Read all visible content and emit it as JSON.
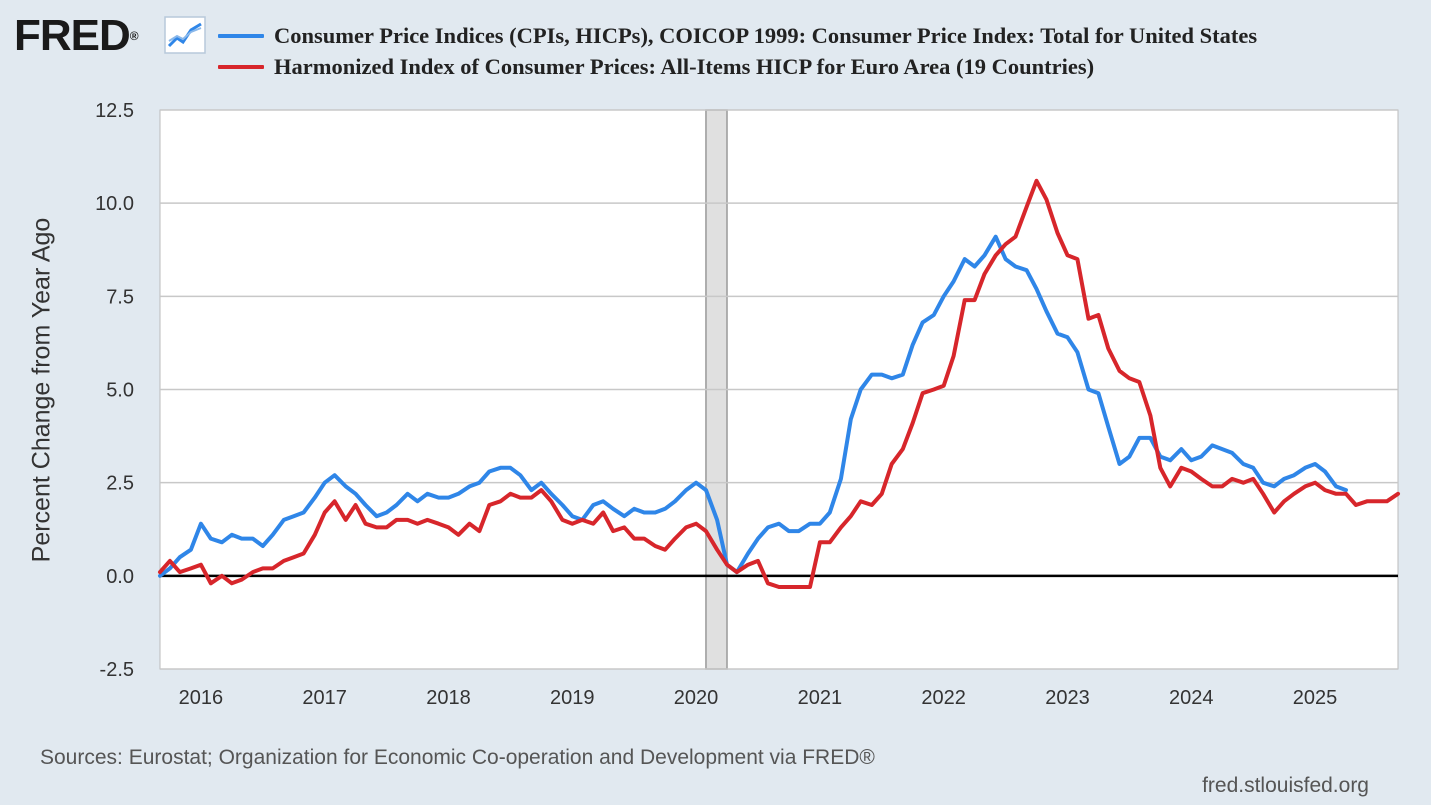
{
  "brand": {
    "logo_text": "FRED",
    "logo_mark": "®",
    "icon": "line-chart-icon",
    "site": "fred.stlouisfed.org"
  },
  "legend": [
    {
      "label": "Consumer Price Indices (CPIs, HICPs), COICOP 1999: Consumer Price Index: Total for United States",
      "color": "#2f86e8"
    },
    {
      "label": "Harmonized Index of Consumer Prices: All-Items HICP for Euro Area (19 Countries)",
      "color": "#d7262b"
    }
  ],
  "source": "Sources: Eurostat; Organization for Economic Co-operation and Development via FRED®",
  "chart_data": {
    "type": "line",
    "ylabel": "Percent Change from Year Ago",
    "xlim": [
      2015.67,
      2025.67
    ],
    "ylim": [
      -2.5,
      12.5
    ],
    "yticks": [
      -2.5,
      0.0,
      2.5,
      5.0,
      7.5,
      10.0,
      12.5
    ],
    "ytick_labels": [
      "-2.5",
      "0.0",
      "2.5",
      "5.0",
      "7.5",
      "10.0",
      "12.5"
    ],
    "xticks": [
      2016,
      2017,
      2018,
      2019,
      2020,
      2021,
      2022,
      2023,
      2024,
      2025
    ],
    "xtick_labels": [
      "2016",
      "2017",
      "2018",
      "2019",
      "2020",
      "2021",
      "2022",
      "2023",
      "2024",
      "2025"
    ],
    "recession": [
      2020.08,
      2020.25
    ],
    "series": [
      {
        "name": "Consumer Price Indices (CPIs, HICPs), COICOP 1999: Consumer Price Index: Total for United States",
        "color": "#2f86e8",
        "points": [
          [
            2015.67,
            0.0
          ],
          [
            2015.75,
            0.2
          ],
          [
            2015.83,
            0.5
          ],
          [
            2015.92,
            0.7
          ],
          [
            2016.0,
            1.4
          ],
          [
            2016.08,
            1.0
          ],
          [
            2016.17,
            0.9
          ],
          [
            2016.25,
            1.1
          ],
          [
            2016.33,
            1.0
          ],
          [
            2016.42,
            1.0
          ],
          [
            2016.5,
            0.8
          ],
          [
            2016.58,
            1.1
          ],
          [
            2016.67,
            1.5
          ],
          [
            2016.75,
            1.6
          ],
          [
            2016.83,
            1.7
          ],
          [
            2016.92,
            2.1
          ],
          [
            2017.0,
            2.5
          ],
          [
            2017.08,
            2.7
          ],
          [
            2017.17,
            2.4
          ],
          [
            2017.25,
            2.2
          ],
          [
            2017.33,
            1.9
          ],
          [
            2017.42,
            1.6
          ],
          [
            2017.5,
            1.7
          ],
          [
            2017.58,
            1.9
          ],
          [
            2017.67,
            2.2
          ],
          [
            2017.75,
            2.0
          ],
          [
            2017.83,
            2.2
          ],
          [
            2017.92,
            2.1
          ],
          [
            2018.0,
            2.1
          ],
          [
            2018.08,
            2.2
          ],
          [
            2018.17,
            2.4
          ],
          [
            2018.25,
            2.5
          ],
          [
            2018.33,
            2.8
          ],
          [
            2018.42,
            2.9
          ],
          [
            2018.5,
            2.9
          ],
          [
            2018.58,
            2.7
          ],
          [
            2018.67,
            2.3
          ],
          [
            2018.75,
            2.5
          ],
          [
            2018.83,
            2.2
          ],
          [
            2018.92,
            1.9
          ],
          [
            2019.0,
            1.6
          ],
          [
            2019.08,
            1.5
          ],
          [
            2019.17,
            1.9
          ],
          [
            2019.25,
            2.0
          ],
          [
            2019.33,
            1.8
          ],
          [
            2019.42,
            1.6
          ],
          [
            2019.5,
            1.8
          ],
          [
            2019.58,
            1.7
          ],
          [
            2019.67,
            1.7
          ],
          [
            2019.75,
            1.8
          ],
          [
            2019.83,
            2.0
          ],
          [
            2019.92,
            2.3
          ],
          [
            2020.0,
            2.5
          ],
          [
            2020.08,
            2.3
          ],
          [
            2020.17,
            1.5
          ],
          [
            2020.25,
            0.3
          ],
          [
            2020.33,
            0.1
          ],
          [
            2020.42,
            0.6
          ],
          [
            2020.5,
            1.0
          ],
          [
            2020.58,
            1.3
          ],
          [
            2020.67,
            1.4
          ],
          [
            2020.75,
            1.2
          ],
          [
            2020.83,
            1.2
          ],
          [
            2020.92,
            1.4
          ],
          [
            2021.0,
            1.4
          ],
          [
            2021.08,
            1.7
          ],
          [
            2021.17,
            2.6
          ],
          [
            2021.25,
            4.2
          ],
          [
            2021.33,
            5.0
          ],
          [
            2021.42,
            5.4
          ],
          [
            2021.5,
            5.4
          ],
          [
            2021.58,
            5.3
          ],
          [
            2021.67,
            5.4
          ],
          [
            2021.75,
            6.2
          ],
          [
            2021.83,
            6.8
          ],
          [
            2021.92,
            7.0
          ],
          [
            2022.0,
            7.5
          ],
          [
            2022.08,
            7.9
          ],
          [
            2022.17,
            8.5
          ],
          [
            2022.25,
            8.3
          ],
          [
            2022.33,
            8.6
          ],
          [
            2022.42,
            9.1
          ],
          [
            2022.5,
            8.5
          ],
          [
            2022.58,
            8.3
          ],
          [
            2022.67,
            8.2
          ],
          [
            2022.75,
            7.7
          ],
          [
            2022.83,
            7.1
          ],
          [
            2022.92,
            6.5
          ],
          [
            2023.0,
            6.4
          ],
          [
            2023.08,
            6.0
          ],
          [
            2023.17,
            5.0
          ],
          [
            2023.25,
            4.9
          ],
          [
            2023.33,
            4.0
          ],
          [
            2023.42,
            3.0
          ],
          [
            2023.5,
            3.2
          ],
          [
            2023.58,
            3.7
          ],
          [
            2023.67,
            3.7
          ],
          [
            2023.75,
            3.2
          ],
          [
            2023.83,
            3.1
          ],
          [
            2023.92,
            3.4
          ],
          [
            2024.0,
            3.1
          ],
          [
            2024.08,
            3.2
          ],
          [
            2024.17,
            3.5
          ],
          [
            2024.25,
            3.4
          ],
          [
            2024.33,
            3.3
          ],
          [
            2024.42,
            3.0
          ],
          [
            2024.5,
            2.9
          ],
          [
            2024.58,
            2.5
          ],
          [
            2024.67,
            2.4
          ],
          [
            2024.75,
            2.6
          ],
          [
            2024.83,
            2.7
          ],
          [
            2024.92,
            2.9
          ],
          [
            2025.0,
            3.0
          ],
          [
            2025.08,
            2.8
          ],
          [
            2025.17,
            2.4
          ],
          [
            2025.25,
            2.3
          ]
        ]
      },
      {
        "name": "Harmonized Index of Consumer Prices: All-Items HICP for Euro Area (19 Countries)",
        "color": "#d7262b",
        "points": [
          [
            2015.67,
            0.1
          ],
          [
            2015.75,
            0.4
          ],
          [
            2015.83,
            0.1
          ],
          [
            2015.92,
            0.2
          ],
          [
            2016.0,
            0.3
          ],
          [
            2016.08,
            -0.2
          ],
          [
            2016.17,
            0.0
          ],
          [
            2016.25,
            -0.2
          ],
          [
            2016.33,
            -0.1
          ],
          [
            2016.42,
            0.1
          ],
          [
            2016.5,
            0.2
          ],
          [
            2016.58,
            0.2
          ],
          [
            2016.67,
            0.4
          ],
          [
            2016.75,
            0.5
          ],
          [
            2016.83,
            0.6
          ],
          [
            2016.92,
            1.1
          ],
          [
            2017.0,
            1.7
          ],
          [
            2017.08,
            2.0
          ],
          [
            2017.17,
            1.5
          ],
          [
            2017.25,
            1.9
          ],
          [
            2017.33,
            1.4
          ],
          [
            2017.42,
            1.3
          ],
          [
            2017.5,
            1.3
          ],
          [
            2017.58,
            1.5
          ],
          [
            2017.67,
            1.5
          ],
          [
            2017.75,
            1.4
          ],
          [
            2017.83,
            1.5
          ],
          [
            2017.92,
            1.4
          ],
          [
            2018.0,
            1.3
          ],
          [
            2018.08,
            1.1
          ],
          [
            2018.17,
            1.4
          ],
          [
            2018.25,
            1.2
          ],
          [
            2018.33,
            1.9
          ],
          [
            2018.42,
            2.0
          ],
          [
            2018.5,
            2.2
          ],
          [
            2018.58,
            2.1
          ],
          [
            2018.67,
            2.1
          ],
          [
            2018.75,
            2.3
          ],
          [
            2018.83,
            2.0
          ],
          [
            2018.92,
            1.5
          ],
          [
            2019.0,
            1.4
          ],
          [
            2019.08,
            1.5
          ],
          [
            2019.17,
            1.4
          ],
          [
            2019.25,
            1.7
          ],
          [
            2019.33,
            1.2
          ],
          [
            2019.42,
            1.3
          ],
          [
            2019.5,
            1.0
          ],
          [
            2019.58,
            1.0
          ],
          [
            2019.67,
            0.8
          ],
          [
            2019.75,
            0.7
          ],
          [
            2019.83,
            1.0
          ],
          [
            2019.92,
            1.3
          ],
          [
            2020.0,
            1.4
          ],
          [
            2020.08,
            1.2
          ],
          [
            2020.17,
            0.7
          ],
          [
            2020.25,
            0.3
          ],
          [
            2020.33,
            0.1
          ],
          [
            2020.42,
            0.3
          ],
          [
            2020.5,
            0.4
          ],
          [
            2020.58,
            -0.2
          ],
          [
            2020.67,
            -0.3
          ],
          [
            2020.75,
            -0.3
          ],
          [
            2020.83,
            -0.3
          ],
          [
            2020.92,
            -0.3
          ],
          [
            2021.0,
            0.9
          ],
          [
            2021.08,
            0.9
          ],
          [
            2021.17,
            1.3
          ],
          [
            2021.25,
            1.6
          ],
          [
            2021.33,
            2.0
          ],
          [
            2021.42,
            1.9
          ],
          [
            2021.5,
            2.2
          ],
          [
            2021.58,
            3.0
          ],
          [
            2021.67,
            3.4
          ],
          [
            2021.75,
            4.1
          ],
          [
            2021.83,
            4.9
          ],
          [
            2021.92,
            5.0
          ],
          [
            2022.0,
            5.1
          ],
          [
            2022.08,
            5.9
          ],
          [
            2022.17,
            7.4
          ],
          [
            2022.25,
            7.4
          ],
          [
            2022.33,
            8.1
          ],
          [
            2022.42,
            8.6
          ],
          [
            2022.5,
            8.9
          ],
          [
            2022.58,
            9.1
          ],
          [
            2022.67,
            9.9
          ],
          [
            2022.75,
            10.6
          ],
          [
            2022.83,
            10.1
          ],
          [
            2022.92,
            9.2
          ],
          [
            2023.0,
            8.6
          ],
          [
            2023.08,
            8.5
          ],
          [
            2023.17,
            6.9
          ],
          [
            2023.25,
            7.0
          ],
          [
            2023.33,
            6.1
          ],
          [
            2023.42,
            5.5
          ],
          [
            2023.5,
            5.3
          ],
          [
            2023.58,
            5.2
          ],
          [
            2023.67,
            4.3
          ],
          [
            2023.75,
            2.9
          ],
          [
            2023.83,
            2.4
          ],
          [
            2023.92,
            2.9
          ],
          [
            2024.0,
            2.8
          ],
          [
            2024.08,
            2.6
          ],
          [
            2024.17,
            2.4
          ],
          [
            2024.25,
            2.4
          ],
          [
            2024.33,
            2.6
          ],
          [
            2024.42,
            2.5
          ],
          [
            2024.5,
            2.6
          ],
          [
            2024.58,
            2.2
          ],
          [
            2024.67,
            1.7
          ],
          [
            2024.75,
            2.0
          ],
          [
            2024.83,
            2.2
          ],
          [
            2024.92,
            2.4
          ],
          [
            2025.0,
            2.5
          ],
          [
            2025.08,
            2.3
          ],
          [
            2025.17,
            2.2
          ],
          [
            2025.25,
            2.2
          ],
          [
            2025.33,
            1.9
          ],
          [
            2025.42,
            2.0
          ],
          [
            2025.5,
            2.0
          ],
          [
            2025.58,
            2.0
          ],
          [
            2025.67,
            2.2
          ]
        ]
      }
    ]
  }
}
